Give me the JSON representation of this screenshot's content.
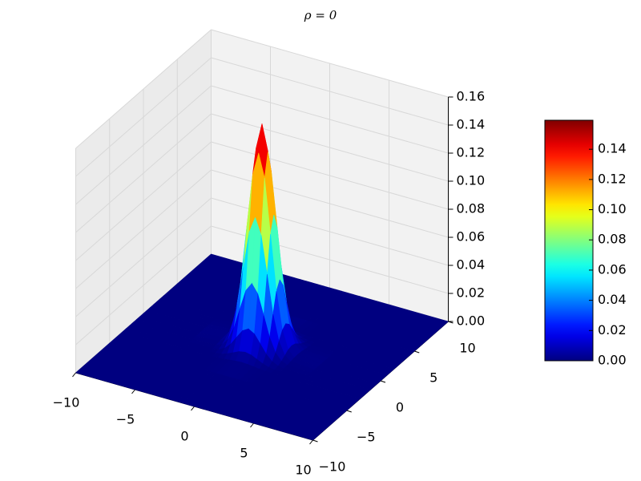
{
  "chart_data": {
    "type": "surface",
    "title": "ρ = 0",
    "colormap": "jet",
    "x": [
      -10,
      -5,
      -3,
      -2.5,
      -2,
      -1.5,
      -1,
      -0.5,
      0,
      0.5,
      1,
      1.5,
      2,
      2.5,
      3,
      5,
      10
    ],
    "y": [
      -10,
      -5,
      -3,
      -2.5,
      -2,
      -1.5,
      -1,
      -0.5,
      0,
      0.5,
      1,
      1.5,
      2,
      2.5,
      3,
      5,
      10
    ],
    "z": [
      [
        0,
        0,
        0,
        0,
        0,
        0,
        0,
        0,
        0,
        0,
        0,
        0,
        0,
        0,
        0,
        0,
        0
      ],
      [
        0,
        0,
        0,
        0,
        0,
        0,
        0,
        0,
        0,
        0,
        0,
        0,
        0,
        0,
        0,
        0,
        0
      ],
      [
        0,
        0,
        0,
        0.0001,
        0.0002,
        0.0006,
        0.0011,
        0.0016,
        0.0018,
        0.0016,
        0.0011,
        0.0006,
        0.0002,
        0.0001,
        0,
        0,
        0
      ],
      [
        0,
        0,
        0.0001,
        0.0003,
        0.0009,
        0.0023,
        0.0042,
        0.0062,
        0.007,
        0.0062,
        0.0042,
        0.0023,
        0.0009,
        0.0003,
        0.0001,
        0,
        0
      ],
      [
        0,
        0,
        0.0002,
        0.0009,
        0.0029,
        0.007,
        0.0131,
        0.019,
        0.0215,
        0.019,
        0.0131,
        0.007,
        0.0029,
        0.0009,
        0.0002,
        0,
        0
      ],
      [
        0,
        0,
        0.0006,
        0.0023,
        0.007,
        0.0168,
        0.0314,
        0.0456,
        0.0517,
        0.0456,
        0.0314,
        0.0168,
        0.007,
        0.0023,
        0.0006,
        0,
        0
      ],
      [
        0,
        0,
        0.0011,
        0.0042,
        0.0131,
        0.0314,
        0.0586,
        0.0852,
        0.0966,
        0.0852,
        0.0586,
        0.0314,
        0.0131,
        0.0042,
        0.0011,
        0,
        0
      ],
      [
        0,
        0,
        0.0016,
        0.0062,
        0.019,
        0.0456,
        0.0852,
        0.124,
        0.1405,
        0.124,
        0.0852,
        0.0456,
        0.019,
        0.0062,
        0.0016,
        0,
        0
      ],
      [
        0,
        0,
        0.0018,
        0.007,
        0.0215,
        0.0517,
        0.0966,
        0.1405,
        0.1592,
        0.1405,
        0.0966,
        0.0517,
        0.0215,
        0.007,
        0.0018,
        0,
        0
      ],
      [
        0,
        0,
        0.0016,
        0.0062,
        0.019,
        0.0456,
        0.0852,
        0.124,
        0.1405,
        0.124,
        0.0852,
        0.0456,
        0.019,
        0.0062,
        0.0016,
        0,
        0
      ],
      [
        0,
        0,
        0.0011,
        0.0042,
        0.0131,
        0.0314,
        0.0586,
        0.0852,
        0.0966,
        0.0852,
        0.0586,
        0.0314,
        0.0131,
        0.0042,
        0.0011,
        0,
        0
      ],
      [
        0,
        0,
        0.0006,
        0.0023,
        0.007,
        0.0168,
        0.0314,
        0.0456,
        0.0517,
        0.0456,
        0.0314,
        0.0168,
        0.007,
        0.0023,
        0.0006,
        0,
        0
      ],
      [
        0,
        0,
        0.0002,
        0.0009,
        0.0029,
        0.007,
        0.0131,
        0.019,
        0.0215,
        0.019,
        0.0131,
        0.007,
        0.0029,
        0.0009,
        0.0002,
        0,
        0
      ],
      [
        0,
        0,
        0.0001,
        0.0003,
        0.0009,
        0.0023,
        0.0042,
        0.0062,
        0.007,
        0.0062,
        0.0042,
        0.0023,
        0.0009,
        0.0003,
        0.0001,
        0,
        0
      ],
      [
        0,
        0,
        0,
        0.0001,
        0.0002,
        0.0006,
        0.0011,
        0.0016,
        0.0018,
        0.0016,
        0.0011,
        0.0006,
        0.0002,
        0.0001,
        0,
        0,
        0
      ],
      [
        0,
        0,
        0,
        0,
        0,
        0,
        0,
        0,
        0,
        0,
        0,
        0,
        0,
        0,
        0,
        0,
        0
      ],
      [
        0,
        0,
        0,
        0,
        0,
        0,
        0,
        0,
        0,
        0,
        0,
        0,
        0,
        0,
        0,
        0,
        0
      ]
    ],
    "xlim": [
      -10,
      10
    ],
    "xticks": [
      {
        "value": -10,
        "label": "−10"
      },
      {
        "value": -5,
        "label": "−5"
      },
      0,
      5,
      10
    ],
    "ylim": [
      -10,
      10
    ],
    "yticks": [
      {
        "value": -10,
        "label": "−10"
      },
      {
        "value": -5,
        "label": "−5"
      },
      0,
      5,
      10
    ],
    "zlim": [
      0,
      0.16
    ],
    "zticks": [
      {
        "value": 0,
        "label": "0.00"
      },
      {
        "value": 0.02,
        "label": "0.02"
      },
      {
        "value": 0.04,
        "label": "0.04"
      },
      {
        "value": 0.06,
        "label": "0.06"
      },
      {
        "value": 0.08,
        "label": "0.08"
      },
      {
        "value": 0.1,
        "label": "0.10"
      },
      {
        "value": 0.12,
        "label": "0.12"
      },
      {
        "value": 0.14,
        "label": "0.14"
      },
      {
        "value": 0.16,
        "label": "0.16"
      }
    ],
    "clim": [
      0,
      0.1592
    ],
    "cticks": [
      {
        "value": 0,
        "label": "0.00"
      },
      {
        "value": 0.02,
        "label": "0.02"
      },
      {
        "value": 0.04,
        "label": "0.04"
      },
      {
        "value": 0.06,
        "label": "0.06"
      },
      {
        "value": 0.08,
        "label": "0.08"
      },
      {
        "value": 0.1,
        "label": "0.10"
      },
      {
        "value": 0.12,
        "label": "0.12"
      },
      {
        "value": 0.14,
        "label": "0.14"
      }
    ],
    "grid": true
  }
}
